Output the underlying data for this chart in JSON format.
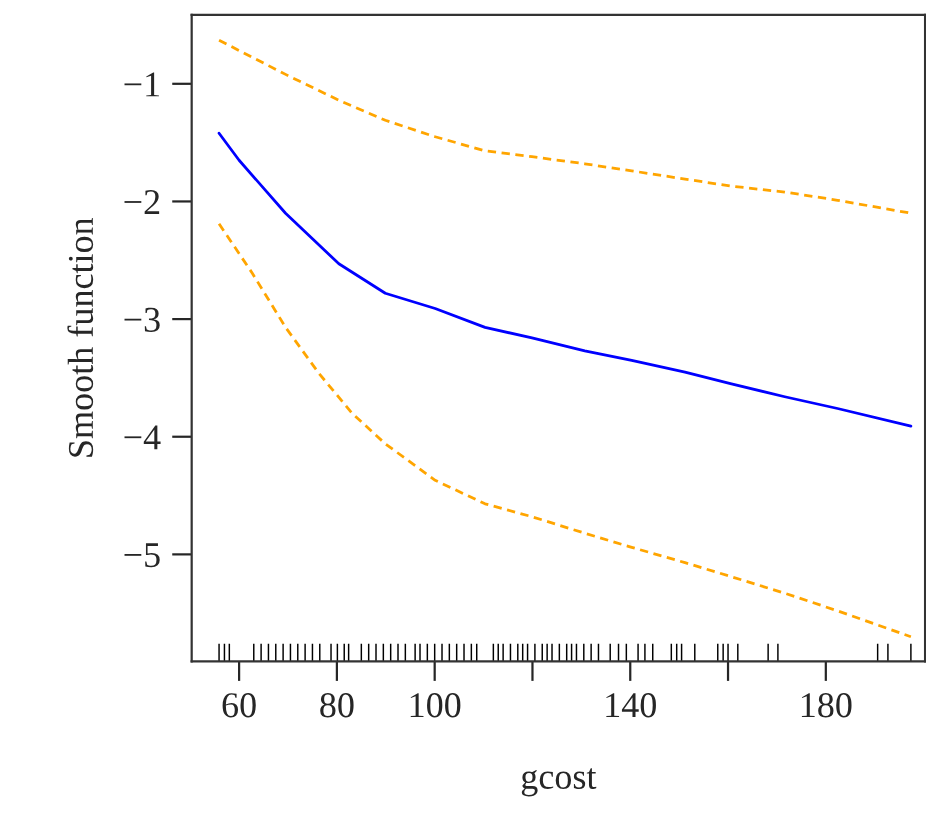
{
  "chart_data": {
    "type": "line",
    "xlabel": "gcost",
    "ylabel": "Smooth function",
    "xlim": [
      50.3,
      200.3
    ],
    "ylim": [
      -5.91,
      -0.415
    ],
    "xticks": [
      60,
      80,
      100,
      {
        "value": 120,
        "label": null
      },
      140,
      {
        "value": 160,
        "label": null
      },
      180
    ],
    "yticks": [
      {
        "value": -1,
        "label": "−1"
      },
      {
        "value": -2,
        "label": "−2"
      },
      {
        "value": -3,
        "label": "−3"
      },
      {
        "value": -4,
        "label": "−4"
      },
      {
        "value": -5,
        "label": "−5"
      }
    ],
    "grid": false,
    "legend": false,
    "series": [
      {
        "marker": "none",
        "color": "#0000ff",
        "line_style": "solid",
        "x": [
          55.9,
          60,
          69.5,
          80.4,
          89.9,
          100.1,
          110.3,
          119.9,
          130.7,
          140.3,
          151.2,
          160.7,
          171.6,
          182.4,
          197.4
        ],
        "values": [
          -1.42,
          -1.65,
          -2.1,
          -2.53,
          -2.78,
          -2.91,
          -3.07,
          -3.16,
          -3.27,
          -3.35,
          -3.45,
          -3.55,
          -3.66,
          -3.76,
          -3.91
        ]
      },
      {
        "marker": "none",
        "color": "#ffa500",
        "line_style": "dashed",
        "x": [
          55.9,
          69.5,
          80.4,
          89.9,
          100.1,
          110.3,
          119.9,
          130.7,
          140.3,
          151.2,
          160.7,
          171.6,
          182.4,
          197.4
        ],
        "values": [
          -0.63,
          -0.92,
          -1.14,
          -1.31,
          -1.45,
          -1.57,
          -1.62,
          -1.68,
          -1.74,
          -1.81,
          -1.87,
          -1.92,
          -1.99,
          -2.1
        ]
      },
      {
        "marker": "none",
        "color": "#ffa500",
        "line_style": "dashed",
        "x": [
          55.9,
          62.7,
          69.5,
          76.3,
          83.1,
          89.9,
          100.1,
          110.3,
          119.9,
          130.7,
          140.3,
          151.2,
          160.7,
          171.6,
          182.4,
          197.4
        ],
        "values": [
          -2.19,
          -2.61,
          -3.07,
          -3.46,
          -3.8,
          -4.06,
          -4.37,
          -4.57,
          -4.68,
          -4.82,
          -4.94,
          -5.07,
          -5.19,
          -5.33,
          -5.48,
          -5.7
        ]
      },
      {
        "type": "bar",
        "color": "#000000",
        "x": [
          55.9,
          57.0,
          58.0,
          63,
          64.5,
          66,
          67.5,
          69,
          70.5,
          72,
          73.5,
          75,
          76.5,
          78.8,
          80.1,
          81.5,
          82.4,
          85,
          86.5,
          88,
          89.5,
          91,
          92.5,
          94,
          96,
          97,
          98.5,
          100,
          101.5,
          103,
          104.5,
          106,
          107.5,
          108.6,
          112,
          113,
          114,
          115.5,
          117,
          118,
          119,
          120.5,
          122,
          123,
          124,
          125.5,
          127,
          128,
          129,
          130.5,
          132,
          133.5,
          135.9,
          137.6,
          139.2,
          141.6,
          143.0,
          144.6,
          148.4,
          149.5,
          150.5,
          153.2,
          157.9,
          159.0,
          160.0,
          162.0,
          168.2,
          170.2,
          190.6,
          192.7,
          197.4
        ],
        "base": [
          -5.91,
          -5.91,
          -5.91,
          -5.91,
          -5.91,
          -5.91,
          -5.91,
          -5.91,
          -5.91,
          -5.91,
          -5.91,
          -5.91,
          -5.91,
          -5.91,
          -5.91,
          -5.91,
          -5.91,
          -5.91,
          -5.91,
          -5.91,
          -5.91,
          -5.91,
          -5.91,
          -5.91,
          -5.91,
          -5.91,
          -5.91,
          -5.91,
          -5.91,
          -5.91,
          -5.91,
          -5.91,
          -5.91,
          -5.91,
          -5.91,
          -5.91,
          -5.91,
          -5.91,
          -5.91,
          -5.91,
          -5.91,
          -5.91,
          -5.91,
          -5.91,
          -5.91,
          -5.91,
          -5.91,
          -5.91,
          -5.91,
          -5.91,
          -5.91,
          -5.91,
          -5.91,
          -5.91,
          -5.91,
          -5.91,
          -5.91,
          -5.91,
          -5.91,
          -5.91,
          -5.91,
          -5.91,
          -5.91,
          -5.91,
          -5.91,
          -5.91,
          -5.91,
          -5.91,
          -5.91,
          -5.91,
          -5.91
        ],
        "values": [
          0.15,
          0.15,
          0.15,
          0.15,
          0.15,
          0.15,
          0.15,
          0.15,
          0.15,
          0.15,
          0.15,
          0.15,
          0.15,
          0.15,
          0.15,
          0.15,
          0.15,
          0.15,
          0.15,
          0.15,
          0.15,
          0.15,
          0.15,
          0.15,
          0.15,
          0.15,
          0.15,
          0.15,
          0.15,
          0.15,
          0.15,
          0.15,
          0.15,
          0.15,
          0.15,
          0.15,
          0.15,
          0.15,
          0.15,
          0.15,
          0.15,
          0.15,
          0.15,
          0.15,
          0.15,
          0.15,
          0.15,
          0.15,
          0.15,
          0.15,
          0.15,
          0.15,
          0.15,
          0.15,
          0.15,
          0.15,
          0.15,
          0.15,
          0.15,
          0.15,
          0.15,
          0.15,
          0.15,
          0.15,
          0.15,
          0.15,
          0.15,
          0.15,
          0.15,
          0.15,
          0.15
        ]
      }
    ]
  }
}
